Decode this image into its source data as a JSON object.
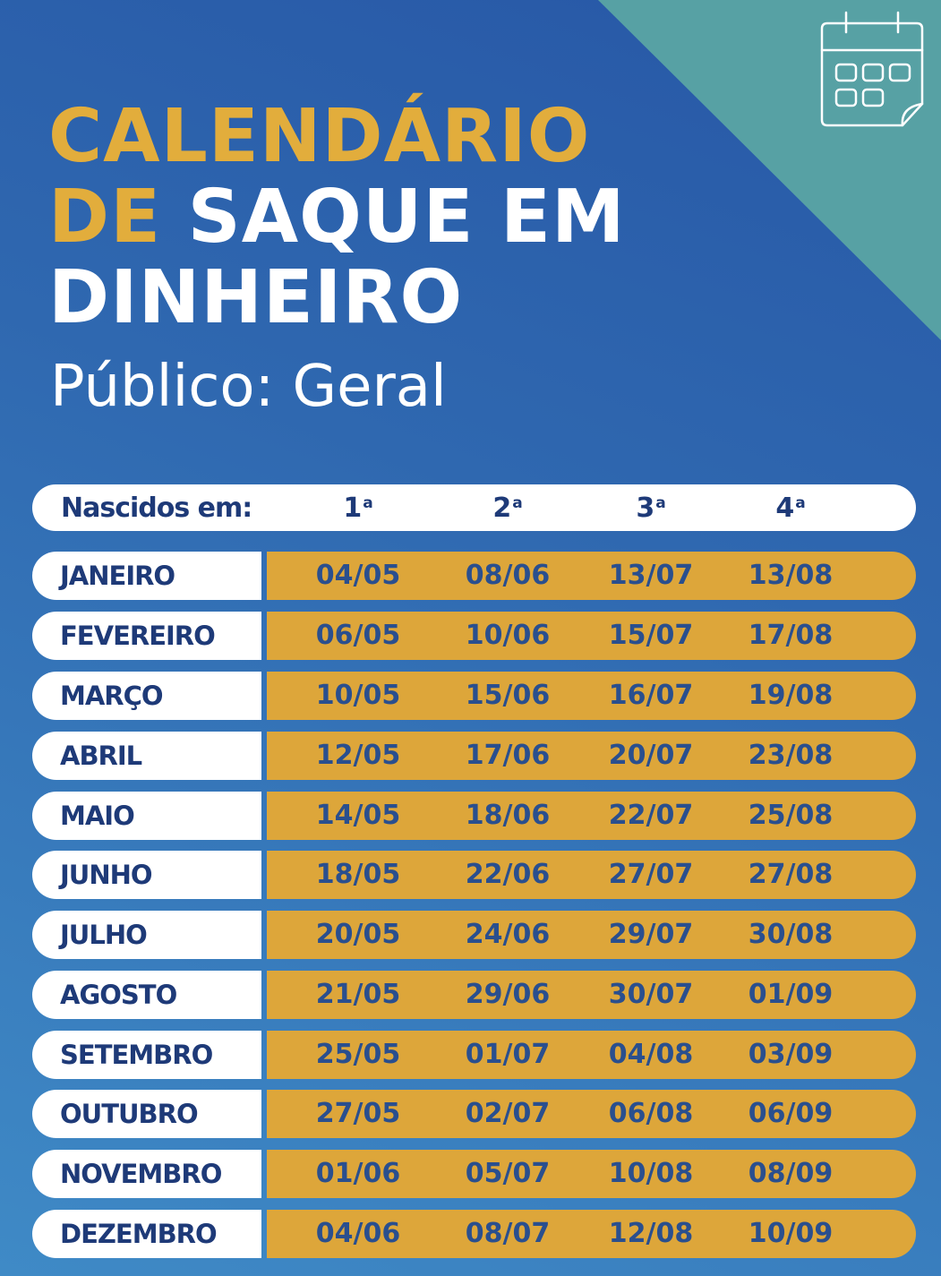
{
  "title": {
    "line1": "CALENDÁRIO",
    "line2_gold": "DE",
    "line2_white": "SAQUE EM",
    "line3": "DINHEIRO"
  },
  "subtitle": "Público: Geral",
  "colors": {
    "background_blue": "#2f68b0",
    "teal_corner": "#57a1a4",
    "gold": "#e2ad3c",
    "date_cell_gold": "#dda63a",
    "text_navy": "#1e3a78",
    "white": "#ffffff"
  },
  "icon": "calendar-icon",
  "table": {
    "header": {
      "label": "Nascidos em:",
      "columns": [
        {
          "num": "1",
          "ord": "a"
        },
        {
          "num": "2",
          "ord": "a"
        },
        {
          "num": "3",
          "ord": "a"
        },
        {
          "num": "4",
          "ord": "a"
        }
      ]
    },
    "rows": [
      {
        "month": "JANEIRO",
        "dates": [
          "04/05",
          "08/06",
          "13/07",
          "13/08"
        ]
      },
      {
        "month": "FEVEREIRO",
        "dates": [
          "06/05",
          "10/06",
          "15/07",
          "17/08"
        ]
      },
      {
        "month": "MARÇO",
        "dates": [
          "10/05",
          "15/06",
          "16/07",
          "19/08"
        ]
      },
      {
        "month": "ABRIL",
        "dates": [
          "12/05",
          "17/06",
          "20/07",
          "23/08"
        ]
      },
      {
        "month": "MAIO",
        "dates": [
          "14/05",
          "18/06",
          "22/07",
          "25/08"
        ]
      },
      {
        "month": "JUNHO",
        "dates": [
          "18/05",
          "22/06",
          "27/07",
          "27/08"
        ]
      },
      {
        "month": "JULHO",
        "dates": [
          "20/05",
          "24/06",
          "29/07",
          "30/08"
        ]
      },
      {
        "month": "AGOSTO",
        "dates": [
          "21/05",
          "29/06",
          "30/07",
          "01/09"
        ]
      },
      {
        "month": "SETEMBRO",
        "dates": [
          "25/05",
          "01/07",
          "04/08",
          "03/09"
        ]
      },
      {
        "month": "OUTUBRO",
        "dates": [
          "27/05",
          "02/07",
          "06/08",
          "06/09"
        ]
      },
      {
        "month": "NOVEMBRO",
        "dates": [
          "01/06",
          "05/07",
          "10/08",
          "08/09"
        ]
      },
      {
        "month": "DEZEMBRO",
        "dates": [
          "04/06",
          "08/07",
          "12/08",
          "10/09"
        ]
      }
    ]
  }
}
